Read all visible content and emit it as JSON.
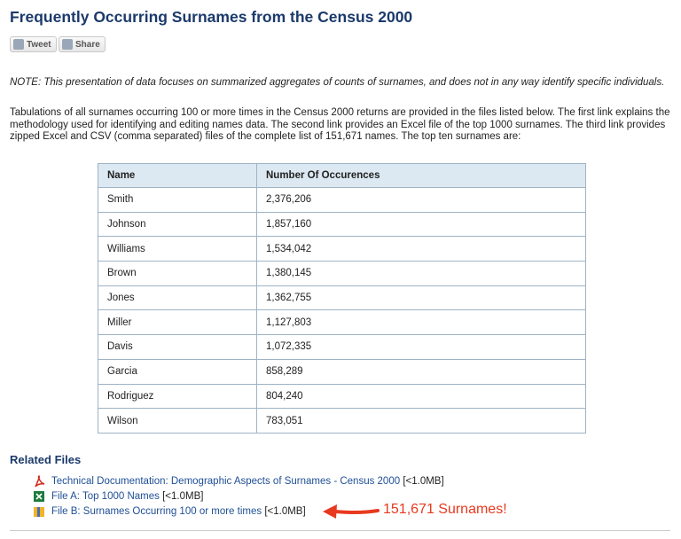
{
  "header": {
    "title": "Frequently Occurring Surnames from the Census 2000"
  },
  "share_buttons": [
    "Tweet",
    "Share"
  ],
  "note": "NOTE: This presentation of data focuses on summarized aggregates of counts of surnames, and does not in any way identify specific individuals.",
  "paragraph": "Tabulations of all surnames occurring 100 or more times in the Census 2000 returns are provided in the files listed below. The first link explains the methodology used for identifying and editing names data. The second link provides an Excel file of the top 1000 surnames. The third link provides zipped Excel and CSV (comma separated) files of the complete list of 151,671 names. The top ten surnames are:",
  "table": {
    "headers": [
      "Name",
      "Number Of Occurences"
    ],
    "rows": [
      [
        "Smith",
        "2,376,206"
      ],
      [
        "Johnson",
        "1,857,160"
      ],
      [
        "Williams",
        "1,534,042"
      ],
      [
        "Brown",
        "1,380,145"
      ],
      [
        "Jones",
        "1,362,755"
      ],
      [
        "Miller",
        "1,127,803"
      ],
      [
        "Davis",
        "1,072,335"
      ],
      [
        "Garcia",
        "858,289"
      ],
      [
        "Rodriguez",
        "804,240"
      ],
      [
        "Wilson",
        "783,051"
      ]
    ]
  },
  "related_files": {
    "title": "Related Files",
    "files": [
      {
        "link": "Technical Documentation: Demographic Aspects of Surnames - Census 2000",
        "size": "[<1.0MB]"
      },
      {
        "link": "File A: Top 1000 Names",
        "size": "[<1.0MB]"
      },
      {
        "link": "File B: Surnames Occurring 100 or more times",
        "size": "[<1.0MB]"
      }
    ]
  },
  "annotation": "151,671 Surnames!"
}
